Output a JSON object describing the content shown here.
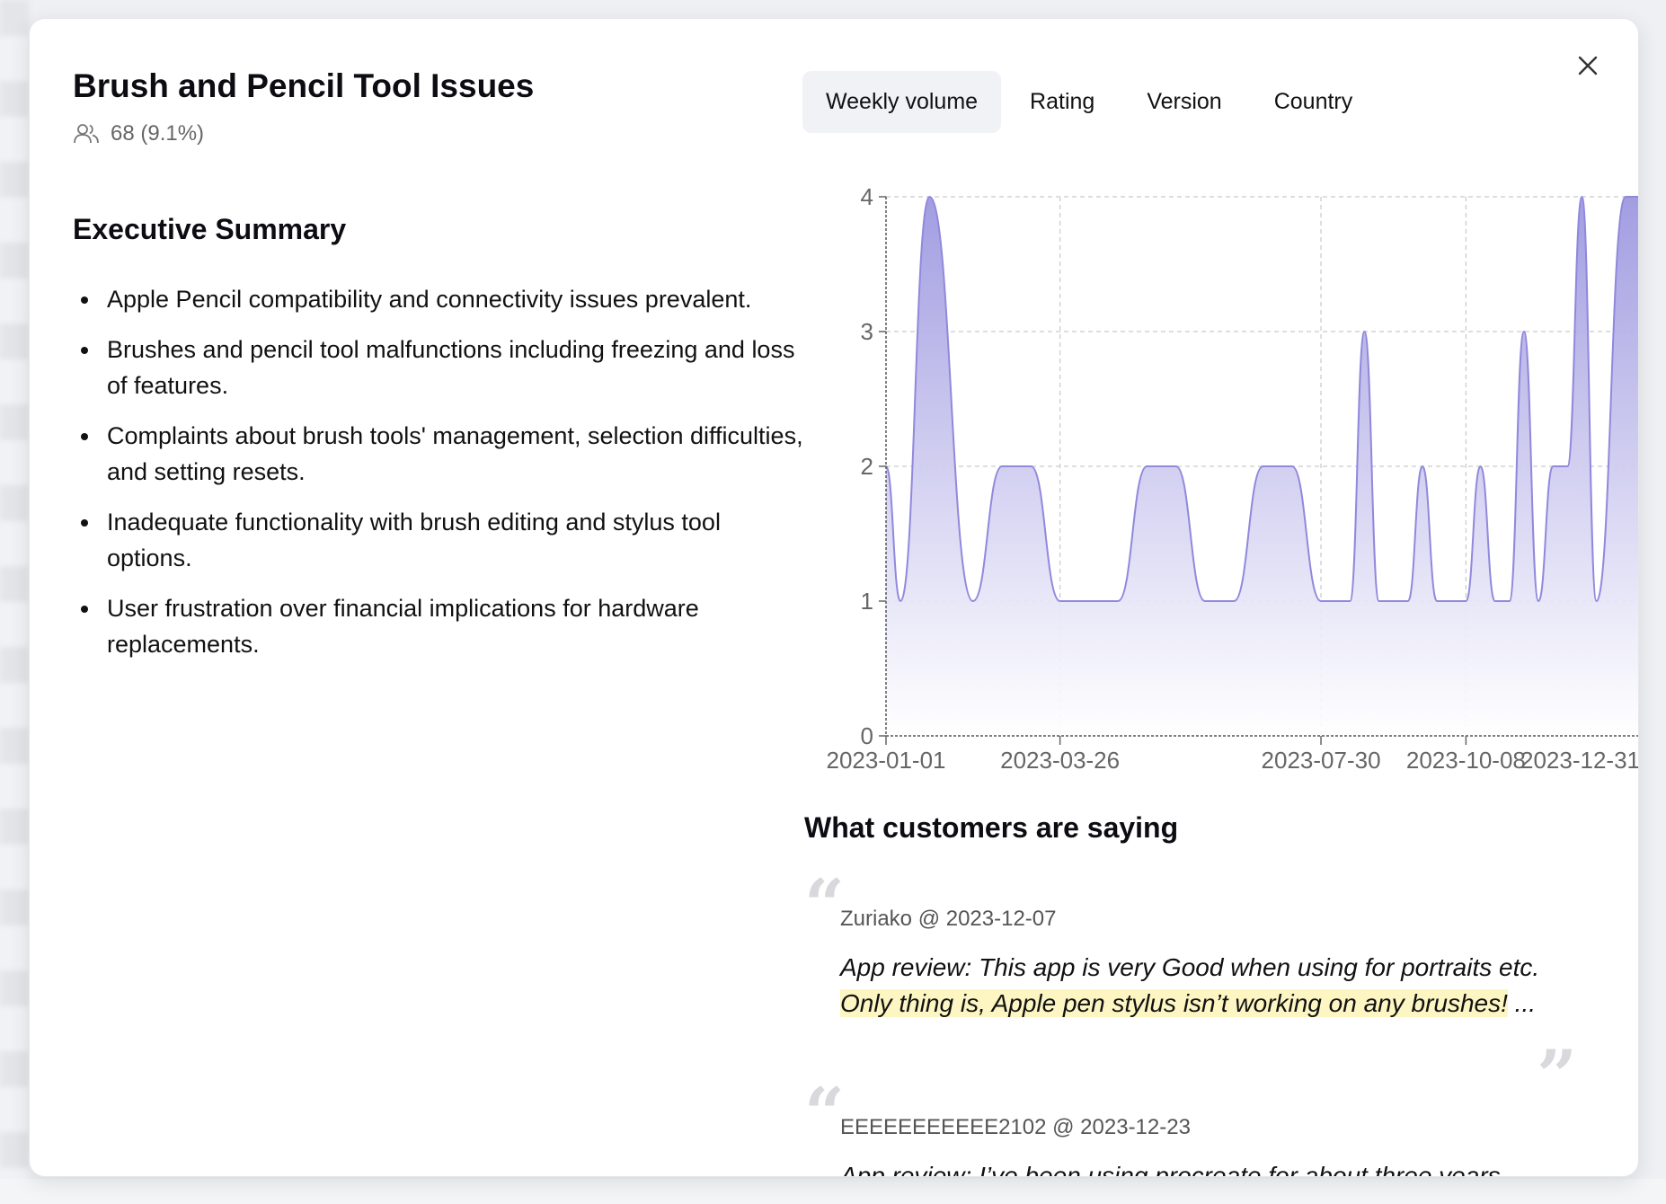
{
  "topic": {
    "title": "Brush and Pencil Tool Issues",
    "count_text": "68 (9.1%)"
  },
  "summary": {
    "heading": "Executive Summary",
    "items": [
      "Apple Pencil compatibility and connectivity issues prevalent.",
      "Brushes and pencil tool malfunctions including freezing and loss of features.",
      "Complaints about brush tools' management, selection difficulties, and setting resets.",
      "Inadequate functionality with brush editing and stylus tool options.",
      "User frustration over financial implications for hardware replacements."
    ]
  },
  "tabs": [
    {
      "label": "Weekly volume",
      "active": true
    },
    {
      "label": "Rating",
      "active": false
    },
    {
      "label": "Version",
      "active": false
    },
    {
      "label": "Country",
      "active": false
    }
  ],
  "chart_data": {
    "type": "area",
    "x_start": "2023-01-01",
    "x_end": "2023-12-31",
    "x_tick_labels": [
      "2023-01-01",
      "2023-03-26",
      "2023-07-30",
      "2023-10-08",
      "2023-12-31"
    ],
    "ylim": [
      0,
      4
    ],
    "yticks": [
      0,
      1,
      2,
      3,
      4
    ],
    "grid": true,
    "points": [
      [
        "2023-01-01",
        2
      ],
      [
        "2023-01-08",
        1
      ],
      [
        "2023-01-22",
        4
      ],
      [
        "2023-02-12",
        1
      ],
      [
        "2023-02-26",
        2
      ],
      [
        "2023-03-12",
        2
      ],
      [
        "2023-03-26",
        1
      ],
      [
        "2023-04-09",
        1
      ],
      [
        "2023-04-23",
        1
      ],
      [
        "2023-05-07",
        2
      ],
      [
        "2023-05-21",
        2
      ],
      [
        "2023-06-04",
        1
      ],
      [
        "2023-06-18",
        1
      ],
      [
        "2023-07-02",
        2
      ],
      [
        "2023-07-16",
        2
      ],
      [
        "2023-07-30",
        1
      ],
      [
        "2023-08-13",
        1
      ],
      [
        "2023-08-20",
        3
      ],
      [
        "2023-08-27",
        1
      ],
      [
        "2023-09-03",
        1
      ],
      [
        "2023-09-10",
        1
      ],
      [
        "2023-09-17",
        2
      ],
      [
        "2023-09-24",
        1
      ],
      [
        "2023-10-01",
        1
      ],
      [
        "2023-10-08",
        1
      ],
      [
        "2023-10-15",
        2
      ],
      [
        "2023-10-22",
        1
      ],
      [
        "2023-10-29",
        1
      ],
      [
        "2023-11-05",
        3
      ],
      [
        "2023-11-12",
        1
      ],
      [
        "2023-11-19",
        2
      ],
      [
        "2023-11-26",
        2
      ],
      [
        "2023-12-03",
        4
      ],
      [
        "2023-12-10",
        1
      ],
      [
        "2023-12-24",
        4
      ],
      [
        "2023-12-31",
        4
      ]
    ],
    "colors": {
      "line": "#9089dc",
      "fill_top": "#9d98e0",
      "fill_bottom": "#ffffff"
    }
  },
  "quotes_section": {
    "heading": "What customers are saying",
    "quotes": [
      {
        "meta": "Zuriako @ 2023-12-07",
        "text_before": "App review: This app is very Good when using for portraits etc. ",
        "highlight": "Only thing is, Apple pen stylus isn’t working on any brushes!",
        "text_after": " ..."
      },
      {
        "meta": "EEEEEEEEEEE2102 @ 2023-12-23",
        "text_before": "App review: I’ve been using procreate for about three years",
        "highlight": "",
        "text_after": ""
      }
    ]
  }
}
